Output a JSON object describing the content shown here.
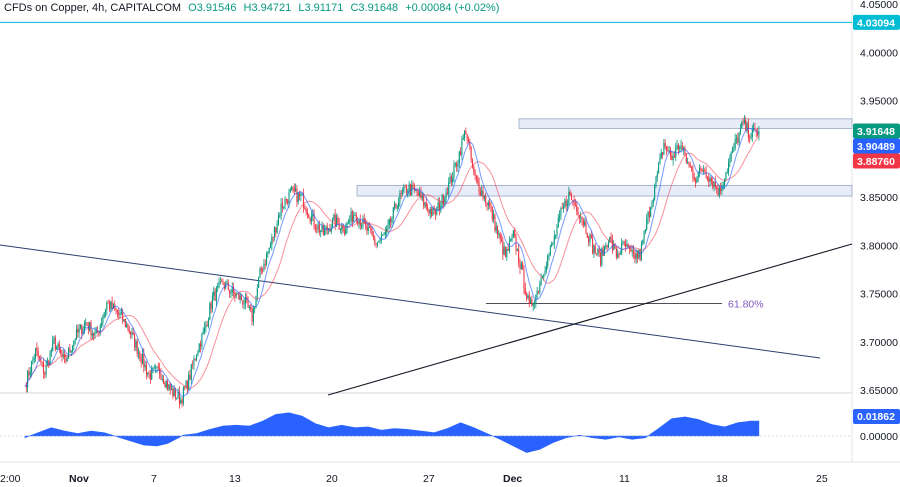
{
  "header": {
    "title": "CFDs on Copper, 4h, CAPITALCOM",
    "open": "O3.91546",
    "high": "H3.94721",
    "low": "L3.91171",
    "close": "C3.91648",
    "change": "+0.00084 (+0.02%)"
  },
  "chart_data": {
    "type": "candlestick",
    "price_axis": {
      "ticks": [
        "4.05000",
        "4.00000",
        "3.95000",
        "3.90000",
        "3.85000",
        "3.80000",
        "3.75000",
        "3.70000",
        "3.65000"
      ],
      "tick_values": [
        4.05,
        4.0,
        3.95,
        3.9,
        3.85,
        3.8,
        3.75,
        3.7,
        3.65
      ],
      "range": [
        3.637,
        4.058
      ]
    },
    "oscillator_axis": {
      "ticks": [
        "0.01862",
        "0.00000"
      ],
      "tick_values": [
        0.01862,
        0.0
      ]
    },
    "time_axis": {
      "labels": [
        "2:00",
        "Nov",
        "7",
        "13",
        "20",
        "27",
        "Dec",
        "11",
        "18",
        "25"
      ]
    },
    "price_tags": [
      {
        "label": "4.03094",
        "value": 4.03094,
        "color": "#00bcd4"
      },
      {
        "label": "3.91648",
        "value": 3.91648,
        "color": "#089981"
      },
      {
        "label": "3.90489",
        "value": 3.90489,
        "color": "#2962ff"
      },
      {
        "label": "3.88760",
        "value": 3.8876,
        "color": "#f23645"
      }
    ],
    "oscillator_tag": {
      "label": "0.01862",
      "value": 0.01862,
      "color": "#2962ff"
    },
    "annotations": [
      {
        "type": "fib_level",
        "label": "61.80%",
        "value": 3.7395
      }
    ],
    "candles_source_colors": {
      "up": "#089981",
      "down": "#f23645"
    },
    "price_path": [
      [
        0,
        3.655
      ],
      [
        8,
        3.69
      ],
      [
        15,
        3.668
      ],
      [
        22,
        3.7
      ],
      [
        30,
        3.678
      ],
      [
        38,
        3.705
      ],
      [
        46,
        3.72
      ],
      [
        54,
        3.705
      ],
      [
        62,
        3.74
      ],
      [
        70,
        3.73
      ],
      [
        78,
        3.715
      ],
      [
        86,
        3.69
      ],
      [
        94,
        3.665
      ],
      [
        102,
        3.67
      ],
      [
        110,
        3.65
      ],
      [
        118,
        3.64
      ],
      [
        124,
        3.66
      ],
      [
        130,
        3.69
      ],
      [
        136,
        3.712
      ],
      [
        142,
        3.745
      ],
      [
        150,
        3.76
      ],
      [
        158,
        3.75
      ],
      [
        166,
        3.742
      ],
      [
        172,
        3.725
      ],
      [
        178,
        3.77
      ],
      [
        186,
        3.8
      ],
      [
        194,
        3.84
      ],
      [
        202,
        3.855
      ],
      [
        210,
        3.848
      ],
      [
        218,
        3.826
      ],
      [
        226,
        3.812
      ],
      [
        234,
        3.825
      ],
      [
        242,
        3.818
      ],
      [
        250,
        3.834
      ],
      [
        258,
        3.818
      ],
      [
        266,
        3.802
      ],
      [
        274,
        3.812
      ],
      [
        282,
        3.845
      ],
      [
        290,
        3.86
      ],
      [
        298,
        3.852
      ],
      [
        304,
        3.84
      ],
      [
        310,
        3.832
      ],
      [
        316,
        3.846
      ],
      [
        322,
        3.866
      ],
      [
        328,
        3.89
      ],
      [
        334,
        3.92
      ],
      [
        340,
        3.872
      ],
      [
        346,
        3.855
      ],
      [
        352,
        3.84
      ],
      [
        358,
        3.812
      ],
      [
        364,
        3.788
      ],
      [
        370,
        3.81
      ],
      [
        376,
        3.775
      ],
      [
        382,
        3.735
      ],
      [
        388,
        3.752
      ],
      [
        394,
        3.78
      ],
      [
        400,
        3.802
      ],
      [
        406,
        3.832
      ],
      [
        412,
        3.852
      ],
      [
        418,
        3.84
      ],
      [
        424,
        3.822
      ],
      [
        430,
        3.798
      ],
      [
        436,
        3.786
      ],
      [
        442,
        3.808
      ],
      [
        448,
        3.79
      ],
      [
        454,
        3.8
      ],
      [
        460,
        3.788
      ],
      [
        466,
        3.79
      ],
      [
        472,
        3.83
      ],
      [
        478,
        3.866
      ],
      [
        484,
        3.905
      ],
      [
        490,
        3.89
      ],
      [
        496,
        3.905
      ],
      [
        502,
        3.885
      ],
      [
        508,
        3.87
      ],
      [
        514,
        3.88
      ],
      [
        520,
        3.868
      ],
      [
        526,
        3.855
      ],
      [
        532,
        3.88
      ],
      [
        538,
        3.905
      ],
      [
        544,
        3.925
      ],
      [
        550,
        3.915
      ],
      [
        556,
        3.918
      ]
    ],
    "oscillator_path": [
      [
        0,
        -0.002
      ],
      [
        10,
        0.004
      ],
      [
        20,
        0.01
      ],
      [
        30,
        0.006
      ],
      [
        40,
        0.003
      ],
      [
        50,
        0.006
      ],
      [
        60,
        0.004
      ],
      [
        70,
        -0.001
      ],
      [
        80,
        -0.006
      ],
      [
        90,
        -0.011
      ],
      [
        100,
        -0.012
      ],
      [
        108,
        -0.009
      ],
      [
        114,
        -0.004
      ],
      [
        120,
        0.001
      ],
      [
        130,
        0.003
      ],
      [
        140,
        0.008
      ],
      [
        150,
        0.012
      ],
      [
        160,
        0.013
      ],
      [
        170,
        0.012
      ],
      [
        180,
        0.018
      ],
      [
        190,
        0.026
      ],
      [
        200,
        0.028
      ],
      [
        210,
        0.024
      ],
      [
        220,
        0.015
      ],
      [
        230,
        0.01
      ],
      [
        240,
        0.013
      ],
      [
        250,
        0.01
      ],
      [
        260,
        0.011
      ],
      [
        270,
        0.007
      ],
      [
        280,
        0.009
      ],
      [
        290,
        0.008
      ],
      [
        300,
        0.006
      ],
      [
        310,
        0.004
      ],
      [
        320,
        0.009
      ],
      [
        330,
        0.016
      ],
      [
        340,
        0.01
      ],
      [
        350,
        0.003
      ],
      [
        360,
        -0.004
      ],
      [
        370,
        -0.012
      ],
      [
        380,
        -0.02
      ],
      [
        390,
        -0.016
      ],
      [
        400,
        -0.008
      ],
      [
        410,
        -0.002
      ],
      [
        420,
        0.001
      ],
      [
        430,
        -0.002
      ],
      [
        440,
        -0.004
      ],
      [
        450,
        -0.001
      ],
      [
        460,
        -0.004
      ],
      [
        470,
        -0.002
      ],
      [
        480,
        0.009
      ],
      [
        490,
        0.021
      ],
      [
        500,
        0.023
      ],
      [
        510,
        0.02
      ],
      [
        520,
        0.014
      ],
      [
        530,
        0.011
      ],
      [
        540,
        0.016
      ],
      [
        550,
        0.018
      ],
      [
        556,
        0.018
      ]
    ]
  }
}
